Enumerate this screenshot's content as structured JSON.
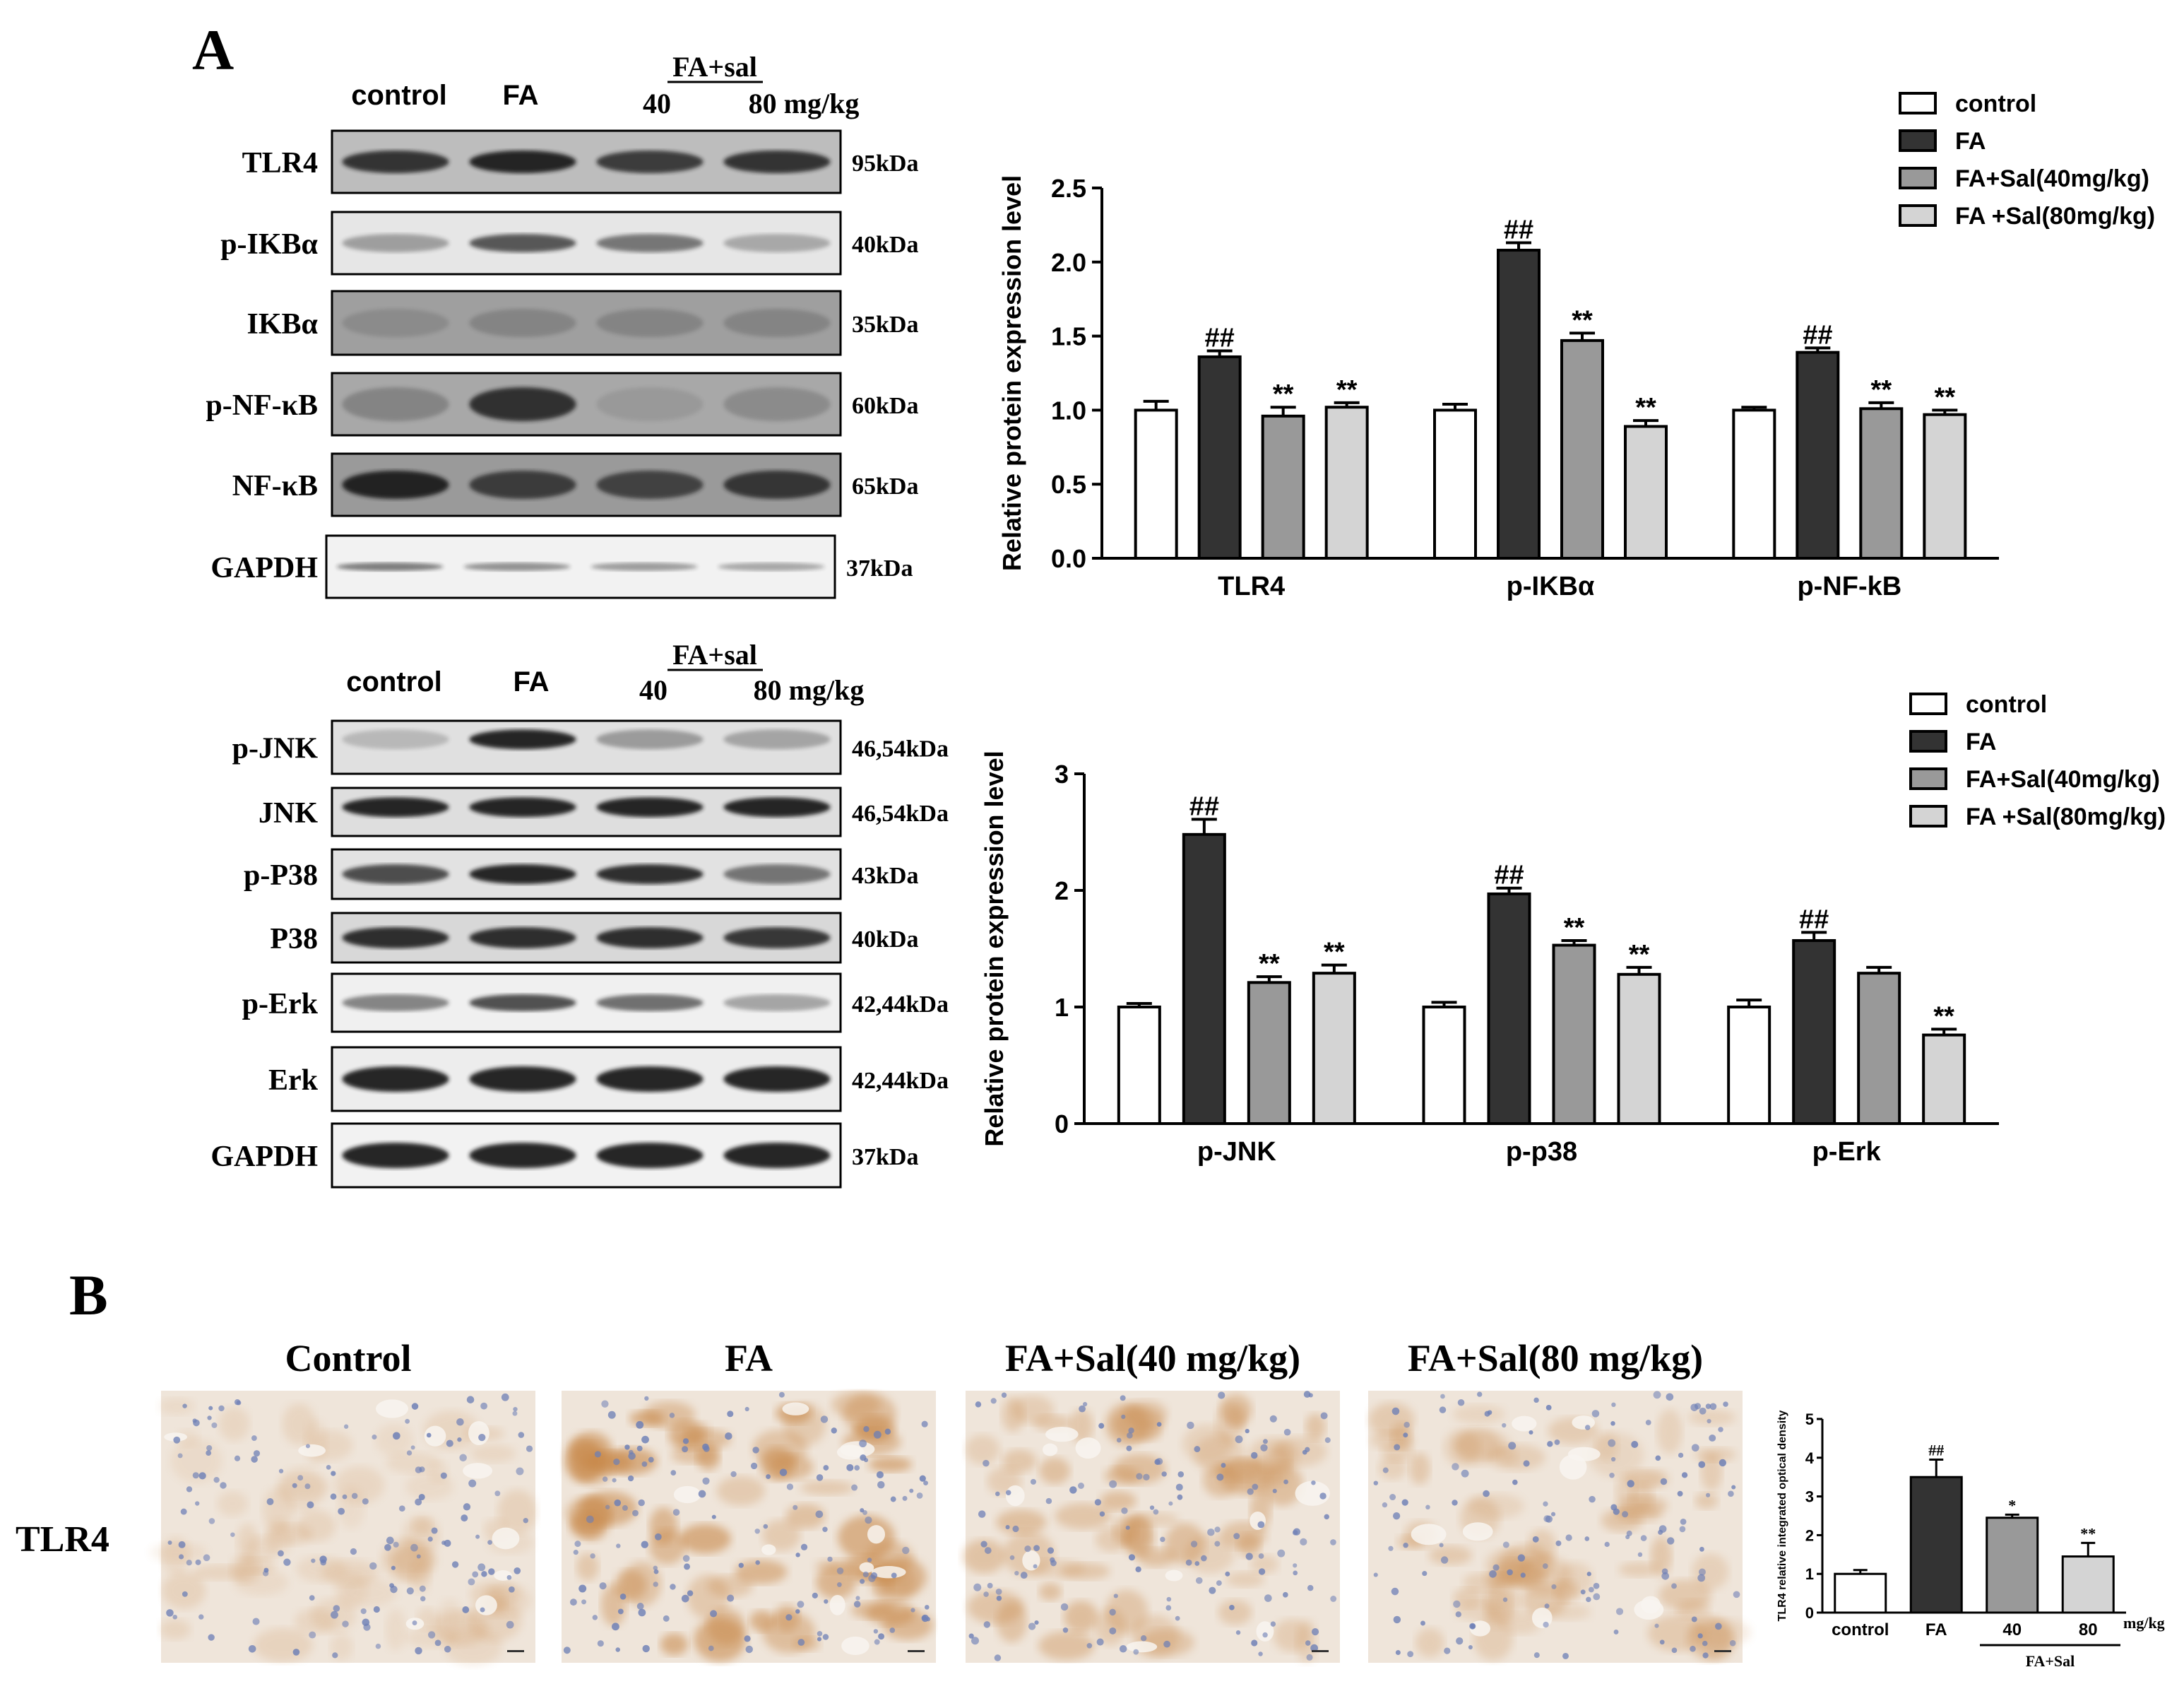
{
  "panelA": {
    "letter": "A",
    "blot1": {
      "groups": [
        "control",
        "FA"
      ],
      "treatHeader": "FA+sal",
      "doses": [
        "40",
        "80 mg/kg"
      ],
      "rows": [
        {
          "label": "TLR4",
          "size": "95kDa"
        },
        {
          "label": "p-IKBα",
          "size": "40kDa"
        },
        {
          "label": "IKBα",
          "size": "35kDa"
        },
        {
          "label": "p-NF-κB",
          "size": "60kDa"
        },
        {
          "label": "NF-κB",
          "size": "65kDa"
        },
        {
          "label": "GAPDH",
          "size": "37kDa"
        }
      ]
    },
    "blot2": {
      "groups": [
        "control",
        "FA"
      ],
      "treatHeader": "FA+sal",
      "doses": [
        "40",
        "80 mg/kg"
      ],
      "rows": [
        {
          "label": "p-JNK",
          "size": "46,54kDa"
        },
        {
          "label": "JNK",
          "size": "46,54kDa"
        },
        {
          "label": "p-P38",
          "size": "43kDa"
        },
        {
          "label": "P38",
          "size": "40kDa"
        },
        {
          "label": "p-Erk",
          "size": "42,44kDa"
        },
        {
          "label": "Erk",
          "size": "42,44kDa"
        },
        {
          "label": "GAPDH",
          "size": "37kDa"
        }
      ]
    }
  },
  "panelB": {
    "letter": "B",
    "rowLabel": "TLR4",
    "imageTitles": [
      "Control",
      "FA",
      "FA+Sal(40 mg/kg)",
      "FA+Sal(80 mg/kg)"
    ]
  },
  "colors": {
    "control": "#ffffff",
    "fa": "#333333",
    "sal40": "#999999",
    "sal80": "#d4d4d4",
    "stain_brown": "#c8884a",
    "stain_blue": "#6d7fb6"
  },
  "chart_data": [
    {
      "type": "bar",
      "ylabel": "Relative protein expression level",
      "ylim": [
        0,
        2.5
      ],
      "yticks": [
        "0.0",
        "0.5",
        "1.0",
        "1.5",
        "2.0",
        "2.5"
      ],
      "categories": [
        "TLR4",
        "p-IKBα",
        "p-NF-kB"
      ],
      "legend_position": "top-right",
      "series": [
        {
          "name": "control",
          "values": [
            1.0,
            1.0,
            1.0
          ],
          "errors": [
            0.06,
            0.04,
            0.02
          ],
          "marks": [
            "",
            "",
            ""
          ]
        },
        {
          "name": "FA",
          "values": [
            1.36,
            2.08,
            1.39
          ],
          "errors": [
            0.04,
            0.05,
            0.03
          ],
          "marks": [
            "##",
            "##",
            "##"
          ]
        },
        {
          "name": "FA+Sal(40mg/kg)",
          "values": [
            0.96,
            1.47,
            1.01
          ],
          "errors": [
            0.06,
            0.05,
            0.04
          ],
          "marks": [
            "**",
            "**",
            "**"
          ]
        },
        {
          "name": "FA +Sal(80mg/kg)",
          "values": [
            1.02,
            0.89,
            0.97
          ],
          "errors": [
            0.03,
            0.04,
            0.03
          ],
          "marks": [
            "**",
            "**",
            "**"
          ]
        }
      ]
    },
    {
      "type": "bar",
      "ylabel": "Relative protein expression level",
      "ylim": [
        0,
        3
      ],
      "yticks": [
        "0",
        "1",
        "2",
        "3"
      ],
      "categories": [
        "p-JNK",
        "p-p38",
        "p-Erk"
      ],
      "legend_position": "top-right",
      "series": [
        {
          "name": "control",
          "values": [
            1.0,
            1.0,
            1.0
          ],
          "errors": [
            0.03,
            0.04,
            0.06
          ],
          "marks": [
            "",
            "",
            ""
          ]
        },
        {
          "name": "FA",
          "values": [
            2.48,
            1.97,
            1.57
          ],
          "errors": [
            0.13,
            0.05,
            0.07
          ],
          "marks": [
            "##",
            "##",
            "##"
          ]
        },
        {
          "name": "FA+Sal(40mg/kg)",
          "values": [
            1.21,
            1.53,
            1.29
          ],
          "errors": [
            0.05,
            0.04,
            0.05
          ],
          "marks": [
            "**",
            "**",
            ""
          ]
        },
        {
          "name": "FA +Sal(80mg/kg)",
          "values": [
            1.29,
            1.28,
            0.76
          ],
          "errors": [
            0.07,
            0.06,
            0.05
          ],
          "marks": [
            "**",
            "**",
            "**"
          ]
        }
      ]
    },
    {
      "type": "bar",
      "ylabel": "TLR4 relative integrated optical density",
      "ylim": [
        0,
        5
      ],
      "yticks": [
        "0",
        "1",
        "2",
        "3",
        "4",
        "5"
      ],
      "categories": [
        "control",
        "FA",
        "40",
        "80"
      ],
      "xunit": "mg/kg",
      "xgroup_label": "FA+Sal",
      "values": [
        1.0,
        3.5,
        2.45,
        1.45
      ],
      "errors": [
        0.1,
        0.45,
        0.08,
        0.35
      ],
      "marks": [
        "",
        "##",
        "*",
        "**"
      ]
    }
  ]
}
